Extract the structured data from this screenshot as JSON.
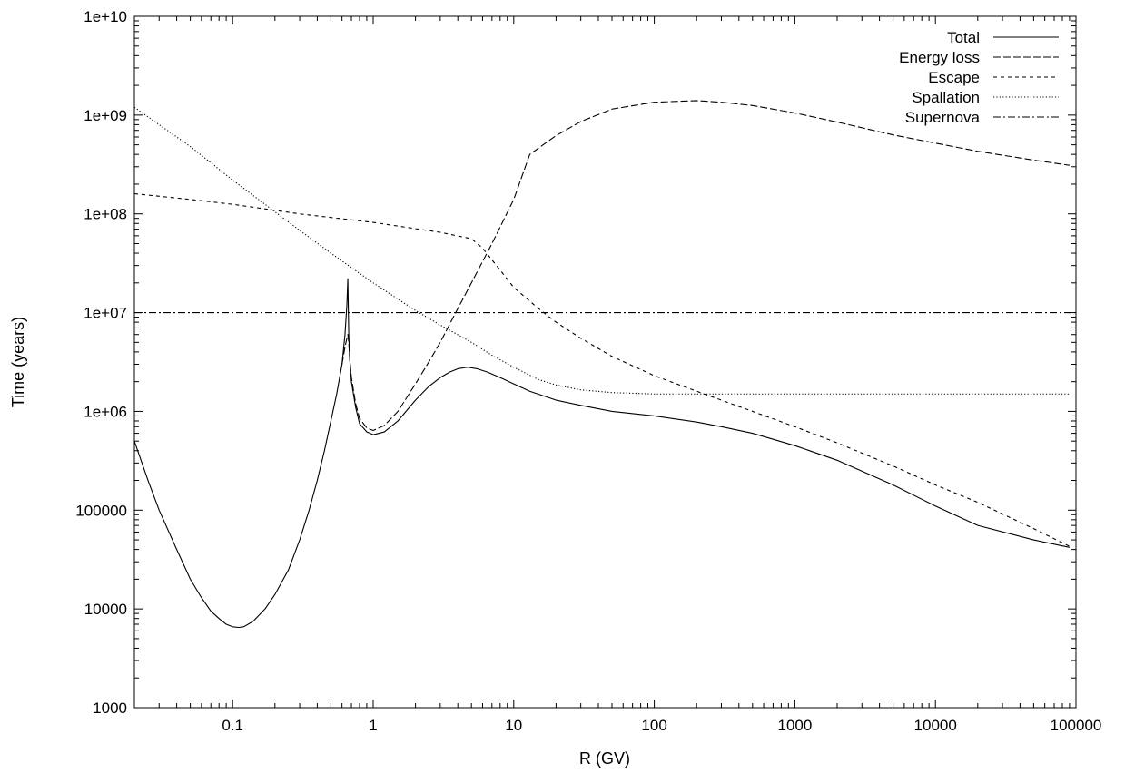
{
  "chart_data": {
    "type": "line",
    "title": "",
    "xlabel": "R (GV)",
    "ylabel": "Time (years)",
    "x_scale": "log",
    "y_scale": "log",
    "xlim": [
      0.02,
      100000
    ],
    "ylim": [
      1000,
      10000000000
    ],
    "x_tick_values": [
      0.1,
      1,
      10,
      100,
      1000,
      10000,
      100000
    ],
    "x_tick_labels": [
      "0.1",
      "1",
      "10",
      "100",
      "1000",
      "10000",
      "100000"
    ],
    "y_tick_values": [
      1000,
      10000,
      100000,
      1000000,
      10000000,
      100000000,
      1000000000,
      10000000000
    ],
    "y_tick_labels": [
      "1000",
      "10000",
      "100000",
      "1e+06",
      "1e+07",
      "1e+08",
      "1e+09",
      "1e+10"
    ],
    "grid": false,
    "legend_position": "top-right",
    "series": [
      {
        "name": "Total",
        "style": "solid",
        "x": [
          0.02,
          0.025,
          0.03,
          0.04,
          0.05,
          0.06,
          0.07,
          0.08,
          0.09,
          0.1,
          0.11,
          0.12,
          0.14,
          0.17,
          0.2,
          0.25,
          0.3,
          0.35,
          0.4,
          0.45,
          0.5,
          0.55,
          0.6,
          0.63,
          0.65,
          0.66,
          0.67,
          0.68,
          0.7,
          0.75,
          0.8,
          0.9,
          1.0,
          1.2,
          1.5,
          2,
          2.5,
          3,
          3.5,
          4,
          4.7,
          5.5,
          6.5,
          8,
          10,
          13,
          20,
          30,
          50,
          100,
          200,
          300,
          500,
          1000,
          2000,
          5000,
          10000,
          20000,
          50000,
          90000
        ],
        "y": [
          500000,
          200000,
          100000,
          40000,
          20000,
          13000,
          9500,
          8000,
          7000,
          6600,
          6500,
          6600,
          7500,
          10000,
          14000,
          25000,
          50000,
          100000,
          200000,
          400000,
          800000,
          1500000,
          3000000,
          6000000,
          12000000,
          22000000,
          6000000,
          3500000,
          2000000,
          1100000,
          750000,
          620000,
          580000,
          620000,
          800000,
          1300000,
          1800000,
          2200000,
          2500000,
          2700000,
          2800000,
          2700000,
          2500000,
          2200000,
          1900000,
          1600000,
          1300000,
          1150000,
          1000000,
          900000,
          780000,
          700000,
          600000,
          450000,
          320000,
          180000,
          110000,
          70000,
          50000,
          42000
        ]
      },
      {
        "name": "Energy loss",
        "style": "dashed",
        "x": [
          0.6,
          0.63,
          0.65,
          0.66,
          0.67,
          0.68,
          0.7,
          0.75,
          0.8,
          0.9,
          1.0,
          1.2,
          1.5,
          2,
          2.5,
          3,
          4,
          5,
          7,
          10,
          13,
          20,
          30,
          50,
          100,
          200,
          300,
          500,
          1000,
          2000,
          5000,
          10000,
          20000,
          50000,
          90000
        ],
        "y": [
          3000000,
          4500000,
          5500000,
          6000000,
          5000000,
          3500000,
          2200000,
          1200000,
          850000,
          680000,
          640000,
          720000,
          1000000,
          1900000,
          3200000,
          5000000,
          11000000,
          20000000,
          50000000,
          140000000,
          400000000,
          620000000,
          860000000,
          1150000000,
          1350000000,
          1400000000,
          1350000000,
          1250000000,
          1050000000,
          850000000,
          630000000,
          520000000,
          430000000,
          350000000,
          310000000
        ]
      },
      {
        "name": "Escape",
        "style": "short-dashed",
        "x": [
          0.02,
          0.05,
          0.1,
          0.3,
          1,
          3,
          5,
          6,
          8,
          10,
          15,
          20,
          30,
          50,
          100,
          200,
          500,
          1000,
          2000,
          5000,
          10000,
          20000,
          50000,
          90000
        ],
        "y": [
          160000000,
          140000000,
          125000000,
          100000000,
          82000000,
          65000000,
          56000000,
          45000000,
          27000000,
          18000000,
          11000000,
          8000000,
          5500000,
          3600000,
          2300000,
          1600000,
          1000000,
          700000,
          480000,
          280000,
          180000,
          120000,
          65000,
          43000
        ]
      },
      {
        "name": "Spallation",
        "style": "dotted",
        "x": [
          0.02,
          0.03,
          0.05,
          0.1,
          0.2,
          0.3,
          0.5,
          1,
          2,
          3,
          5,
          7,
          10,
          15,
          20,
          30,
          50,
          100,
          1000,
          10000,
          90000
        ],
        "y": [
          1200000000,
          800000000,
          480000000,
          220000000,
          105000000,
          68000000,
          40000000,
          20000000,
          10500000,
          7500000,
          5000000,
          3700000,
          2800000,
          2100000,
          1850000,
          1650000,
          1550000,
          1500000,
          1500000,
          1500000,
          1500000
        ]
      },
      {
        "name": "Supernova",
        "style": "dash-dot",
        "x": [
          0.02,
          100000
        ],
        "y": [
          10000000,
          10000000
        ]
      }
    ]
  }
}
